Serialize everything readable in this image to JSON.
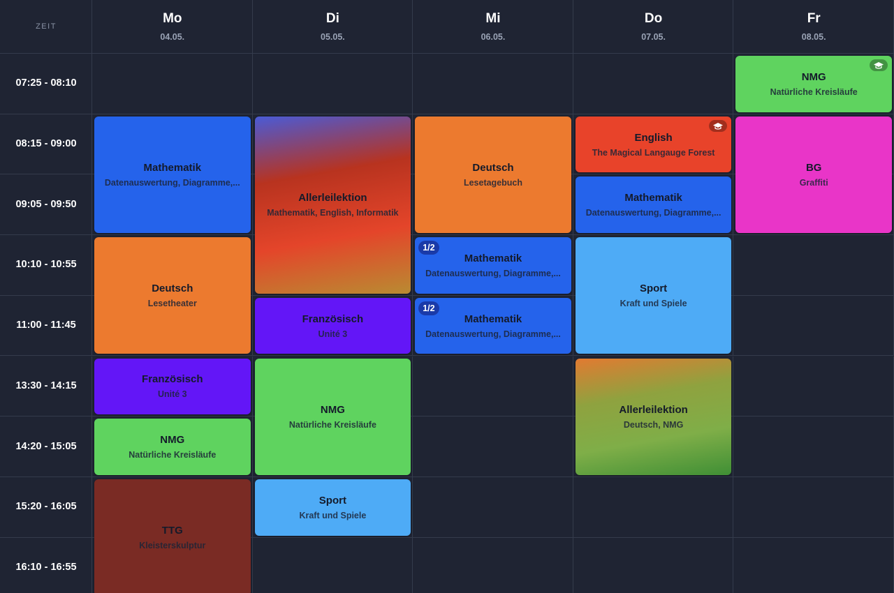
{
  "header": {
    "time_label": "ZEIT",
    "days": [
      {
        "name": "Mo",
        "date": "04.05."
      },
      {
        "name": "Di",
        "date": "05.05."
      },
      {
        "name": "Mi",
        "date": "06.05."
      },
      {
        "name": "Do",
        "date": "07.05."
      },
      {
        "name": "Fr",
        "date": "08.05."
      }
    ]
  },
  "time_slots": [
    "07:25 - 08:10",
    "08:15 - 09:00",
    "09:05 - 09:50",
    "10:10 - 10:55",
    "11:00 - 11:45",
    "13:30 - 14:15",
    "14:20 - 15:05",
    "15:20 - 16:05",
    "16:10 - 16:55"
  ],
  "lessons": [
    {
      "day": 0,
      "start": 1,
      "end": 2,
      "title": "Mathematik",
      "subtitle": "Datenauswertung, Diagramme,...",
      "colors": [
        "#2563eb"
      ]
    },
    {
      "day": 0,
      "start": 3,
      "end": 4,
      "title": "Deutsch",
      "subtitle": "Lesetheater",
      "colors": [
        "#ec7a2f"
      ]
    },
    {
      "day": 0,
      "start": 5,
      "end": 5,
      "title": "Französisch",
      "subtitle": "Unité 3",
      "colors": [
        "#6316f7"
      ]
    },
    {
      "day": 0,
      "start": 6,
      "end": 6,
      "title": "NMG",
      "subtitle": "Natürliche Kreisläufe",
      "colors": [
        "#5fd35f"
      ]
    },
    {
      "day": 0,
      "start": 7,
      "end": 8,
      "title": "TTG",
      "subtitle": "Kleisterskulptur",
      "colors": [
        "#7a2b24"
      ]
    },
    {
      "day": 1,
      "start": 1,
      "end": 3,
      "title": "Allerleilektion",
      "subtitle": "Mathematik, English, Informatik",
      "colors": [
        "#4a5bd6",
        "#b8331f",
        "#e4452a",
        "#b98b32"
      ]
    },
    {
      "day": 1,
      "start": 4,
      "end": 4,
      "title": "Französisch",
      "subtitle": "Unité 3",
      "colors": [
        "#6316f7"
      ]
    },
    {
      "day": 1,
      "start": 5,
      "end": 6,
      "title": "NMG",
      "subtitle": "Natürliche Kreisläufe",
      "colors": [
        "#5fd35f"
      ]
    },
    {
      "day": 1,
      "start": 7,
      "end": 7,
      "title": "Sport",
      "subtitle": "Kraft und Spiele",
      "colors": [
        "#4eabf6"
      ]
    },
    {
      "day": 2,
      "start": 1,
      "end": 2,
      "title": "Deutsch",
      "subtitle": "Lesetagebuch",
      "colors": [
        "#ec7a2f"
      ]
    },
    {
      "day": 2,
      "start": 3,
      "end": 3,
      "title": "Mathematik",
      "subtitle": "Datenauswertung, Diagramme,...",
      "colors": [
        "#2563eb"
      ],
      "badge": "1/2"
    },
    {
      "day": 2,
      "start": 4,
      "end": 4,
      "title": "Mathematik",
      "subtitle": "Datenauswertung, Diagramme,...",
      "colors": [
        "#2563eb"
      ],
      "badge": "1/2"
    },
    {
      "day": 3,
      "start": 1,
      "end": 1,
      "title": "English",
      "subtitle": "The Magical Langauge Forest",
      "colors": [
        "#e8432a"
      ],
      "exam": true
    },
    {
      "day": 3,
      "start": 2,
      "end": 2,
      "title": "Mathematik",
      "subtitle": "Datenauswertung, Diagramme,...",
      "colors": [
        "#2563eb"
      ]
    },
    {
      "day": 3,
      "start": 3,
      "end": 4,
      "title": "Sport",
      "subtitle": "Kraft und Spiele",
      "colors": [
        "#4eabf6"
      ]
    },
    {
      "day": 3,
      "start": 5,
      "end": 6,
      "title": "Allerleilektion",
      "subtitle": "Deutsch, NMG",
      "colors": [
        "#e27a31",
        "#8fa23f",
        "#7fae48",
        "#3f8f35"
      ]
    },
    {
      "day": 4,
      "start": 0,
      "end": 0,
      "title": "NMG",
      "subtitle": "Natürliche Kreisläufe",
      "colors": [
        "#5fd35f"
      ],
      "exam": true
    },
    {
      "day": 4,
      "start": 1,
      "end": 2,
      "title": "BG",
      "subtitle": "Graffiti",
      "colors": [
        "#e935c8"
      ]
    }
  ]
}
